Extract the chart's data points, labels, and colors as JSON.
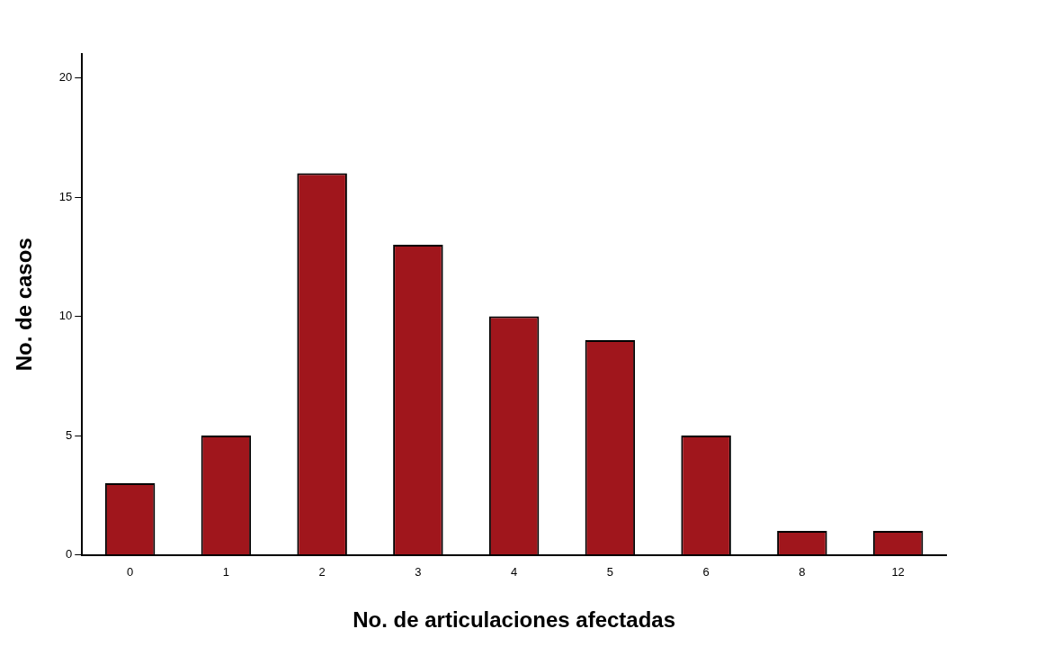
{
  "chart_data": {
    "type": "bar",
    "xlabel": "No. de articulaciones afectadas",
    "ylabel": "No. de casos",
    "categories": [
      "0",
      "1",
      "2",
      "3",
      "4",
      "5",
      "6",
      "8",
      "12"
    ],
    "values": [
      3,
      5,
      16,
      13,
      10,
      9,
      5,
      1,
      1
    ],
    "color": "#a0161c",
    "ylim": [
      0,
      21
    ],
    "yticks": [
      0,
      5,
      10,
      15,
      20
    ],
    "grid": false,
    "legend": false
  }
}
